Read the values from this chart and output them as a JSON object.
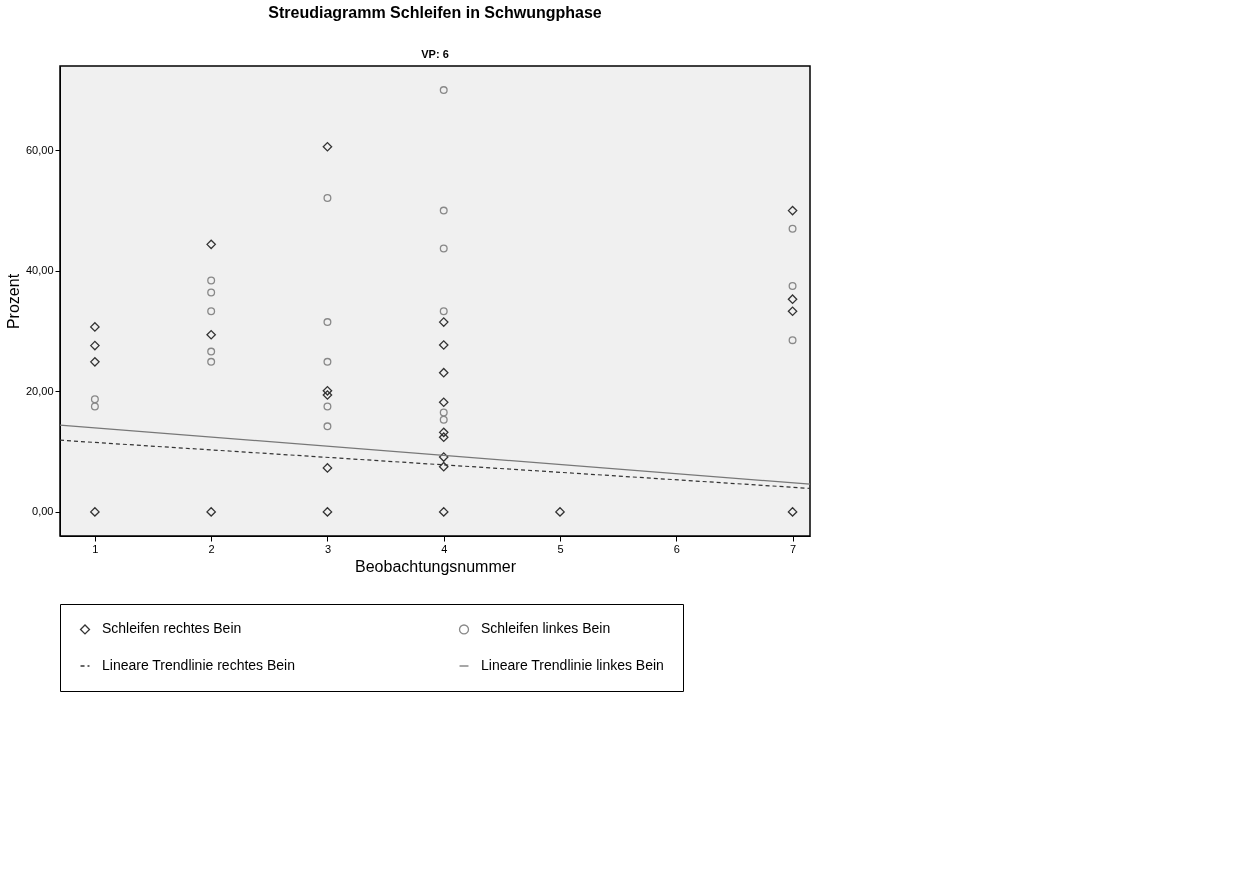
{
  "chart_data": {
    "type": "scatter",
    "title": "Streudiagramm Schleifen in Schwungphase",
    "subtitle": "VP: 6",
    "xlabel": "Beobachtungsnummer",
    "ylabel": "Prozent",
    "xlim": [
      0.7,
      7.15
    ],
    "xticks": [
      1,
      2,
      3,
      4,
      5,
      6,
      7
    ],
    "ylim": [
      -4,
      74
    ],
    "yticks": [
      {
        "value": 0,
        "label": "0,00"
      },
      {
        "value": 20,
        "label": "20,00"
      },
      {
        "value": 40,
        "label": "40,00"
      },
      {
        "value": 60,
        "label": "60,00"
      }
    ],
    "grid": false,
    "legend": "bottom",
    "series": [
      {
        "name": "Schleifen rechtes Bein",
        "type": "scatter",
        "marker": "diamond",
        "color": "#333333",
        "x": [
          1,
          1,
          1,
          1,
          2,
          2,
          2,
          3,
          3,
          3,
          3,
          3,
          4,
          4,
          4,
          4,
          4,
          4,
          4,
          4,
          4,
          5,
          7,
          7,
          7,
          7
        ],
        "values": [
          30.7,
          27.6,
          24.9,
          0,
          44.4,
          29.4,
          0,
          60.6,
          20.1,
          19.4,
          7.3,
          0,
          31.5,
          27.7,
          23.1,
          18.2,
          13.2,
          12.4,
          9.1,
          7.5,
          0,
          0,
          50.0,
          35.3,
          33.3,
          0
        ]
      },
      {
        "name": "Schleifen linkes Bein",
        "type": "scatter",
        "marker": "circle",
        "color": "#888888",
        "x": [
          1,
          1,
          2,
          2,
          2,
          2,
          2,
          3,
          3,
          3,
          3,
          3,
          4,
          4,
          4,
          4,
          4,
          4,
          7,
          7,
          7
        ],
        "values": [
          18.7,
          17.5,
          38.4,
          36.4,
          33.3,
          26.6,
          24.9,
          52.1,
          31.5,
          24.9,
          17.5,
          14.2,
          70.0,
          50.0,
          43.7,
          33.3,
          16.5,
          15.3,
          47.0,
          37.5,
          28.5
        ]
      },
      {
        "name": "Lineare Trendlinie rechtes Bein",
        "type": "line",
        "line_style": "dashed",
        "color": "#333333",
        "x": [
          0.7,
          7.15
        ],
        "values": [
          11.9,
          3.9
        ]
      },
      {
        "name": "Lineare Trendlinie linkes Bein",
        "type": "line",
        "line_style": "solid",
        "color": "#777777",
        "x": [
          0.7,
          7.15
        ],
        "values": [
          14.4,
          4.6
        ]
      }
    ]
  }
}
